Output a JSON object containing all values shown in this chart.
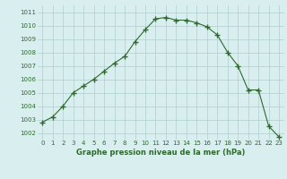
{
  "x": [
    0,
    1,
    2,
    3,
    4,
    5,
    6,
    7,
    8,
    9,
    10,
    11,
    12,
    13,
    14,
    15,
    16,
    17,
    18,
    19,
    20,
    21,
    22,
    23
  ],
  "y": [
    1002.8,
    1003.2,
    1004.0,
    1005.0,
    1005.5,
    1006.0,
    1006.6,
    1007.2,
    1007.7,
    1008.8,
    1009.7,
    1010.5,
    1010.6,
    1010.4,
    1010.4,
    1010.2,
    1009.9,
    1009.3,
    1008.0,
    1007.0,
    1005.2,
    1005.2,
    1002.5,
    1001.7
  ],
  "line_color": "#2d6a2d",
  "marker": "+",
  "bg_color": "#d9eeee",
  "grid_color": "#b0cece",
  "xlabel": "Graphe pression niveau de la mer (hPa)",
  "xlabel_color": "#2d6a2d",
  "ylabel_ticks": [
    1002,
    1003,
    1004,
    1005,
    1006,
    1007,
    1008,
    1009,
    1010,
    1011
  ],
  "xticks": [
    0,
    1,
    2,
    3,
    4,
    5,
    6,
    7,
    8,
    9,
    10,
    11,
    12,
    13,
    14,
    15,
    16,
    17,
    18,
    19,
    20,
    21,
    22,
    23
  ],
  "ylim": [
    1001.5,
    1011.5
  ],
  "xlim": [
    -0.5,
    23.5
  ]
}
